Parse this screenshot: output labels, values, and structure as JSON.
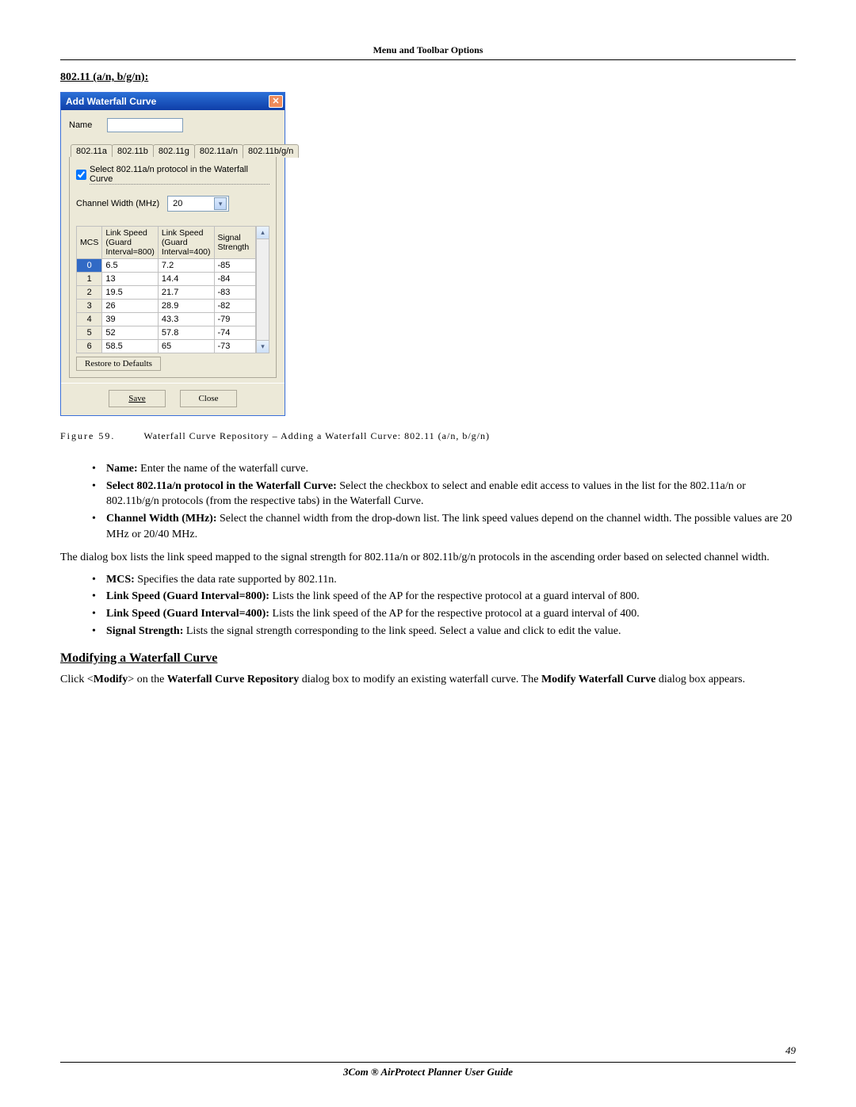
{
  "header": {
    "title": "Menu and Toolbar Options"
  },
  "section_heading": "802.11 (a/n, b/g/n):",
  "dialog": {
    "title": "Add Waterfall Curve",
    "name_label": "Name",
    "name_value": "",
    "tabs": [
      "802.11a",
      "802.11b",
      "802.11g",
      "802.11a/n",
      "802.11b/g/n"
    ],
    "active_tab_index": 3,
    "checkbox_label": "Select 802.11a/n protocol in the Waterfall Curve",
    "checkbox_checked": true,
    "channel_width_label": "Channel Width (MHz)",
    "channel_width_value": "20",
    "table": {
      "headers": [
        "MCS",
        "Link Speed (Guard Interval=800)",
        "Link Speed (Guard Interval=400)",
        "Signal Strength"
      ],
      "col_widths": [
        "26px",
        "70px",
        "70px",
        "54px"
      ],
      "selected_row": 0,
      "rows": [
        [
          "0",
          "6.5",
          "7.2",
          "-85"
        ],
        [
          "1",
          "13",
          "14.4",
          "-84"
        ],
        [
          "2",
          "19.5",
          "21.7",
          "-83"
        ],
        [
          "3",
          "26",
          "28.9",
          "-82"
        ],
        [
          "4",
          "39",
          "43.3",
          "-79"
        ],
        [
          "5",
          "52",
          "57.8",
          "-74"
        ],
        [
          "6",
          "58.5",
          "65",
          "-73"
        ]
      ]
    },
    "restore_label": "Restore to Defaults",
    "save_label": "Save",
    "close_label": "Close"
  },
  "figure": {
    "label": "Figure 59.",
    "caption": "Waterfall Curve Repository – Adding a Waterfall Curve: 802.11 (a/n, b/g/n)"
  },
  "bullets1": [
    {
      "b": "Name:",
      "t": " Enter the name of the waterfall curve."
    },
    {
      "b": "Select 802.11a/n protocol in the Waterfall Curve:",
      "t": " Select the checkbox to select and enable edit access to values in the list for the 802.11a/n or 802.11b/g/n protocols (from the respective tabs) in the Waterfall Curve."
    },
    {
      "b": "Channel Width (MHz):",
      "t": " Select the channel width from the drop-down list. The link speed values depend on the channel width. The possible values are 20 MHz or 20/40 MHz."
    }
  ],
  "paragraph": "The dialog box lists the link speed mapped to the signal strength for 802.11a/n or 802.11b/g/n protocols in the ascending order based on selected channel width.",
  "bullets2": [
    {
      "b": "MCS:",
      "t": " Specifies the data rate supported by 802.11n."
    },
    {
      "b": "Link Speed (Guard Interval=800):",
      "t": " Lists the link speed of the AP for the respective protocol at a guard interval of 800."
    },
    {
      "b": "Link Speed (Guard Interval=400):",
      "t": " Lists the link speed of the AP for the respective protocol at a guard interval of 400."
    },
    {
      "b": "Signal Strength:",
      "t": " Lists the signal strength corresponding to the link speed. Select a value and click to edit the value."
    }
  ],
  "modify": {
    "heading": "Modifying a Waterfall Curve",
    "p1a": "Click <",
    "p1b": "Modify",
    "p1c": "> on the ",
    "p1d": "Waterfall Curve Repository",
    "p1e": " dialog box to modify an existing waterfall curve. The ",
    "p1f": "Modify Waterfall Curve",
    "p1g": " dialog box appears."
  },
  "footer": {
    "page": "49",
    "title": "3Com ® AirProtect Planner User Guide"
  }
}
